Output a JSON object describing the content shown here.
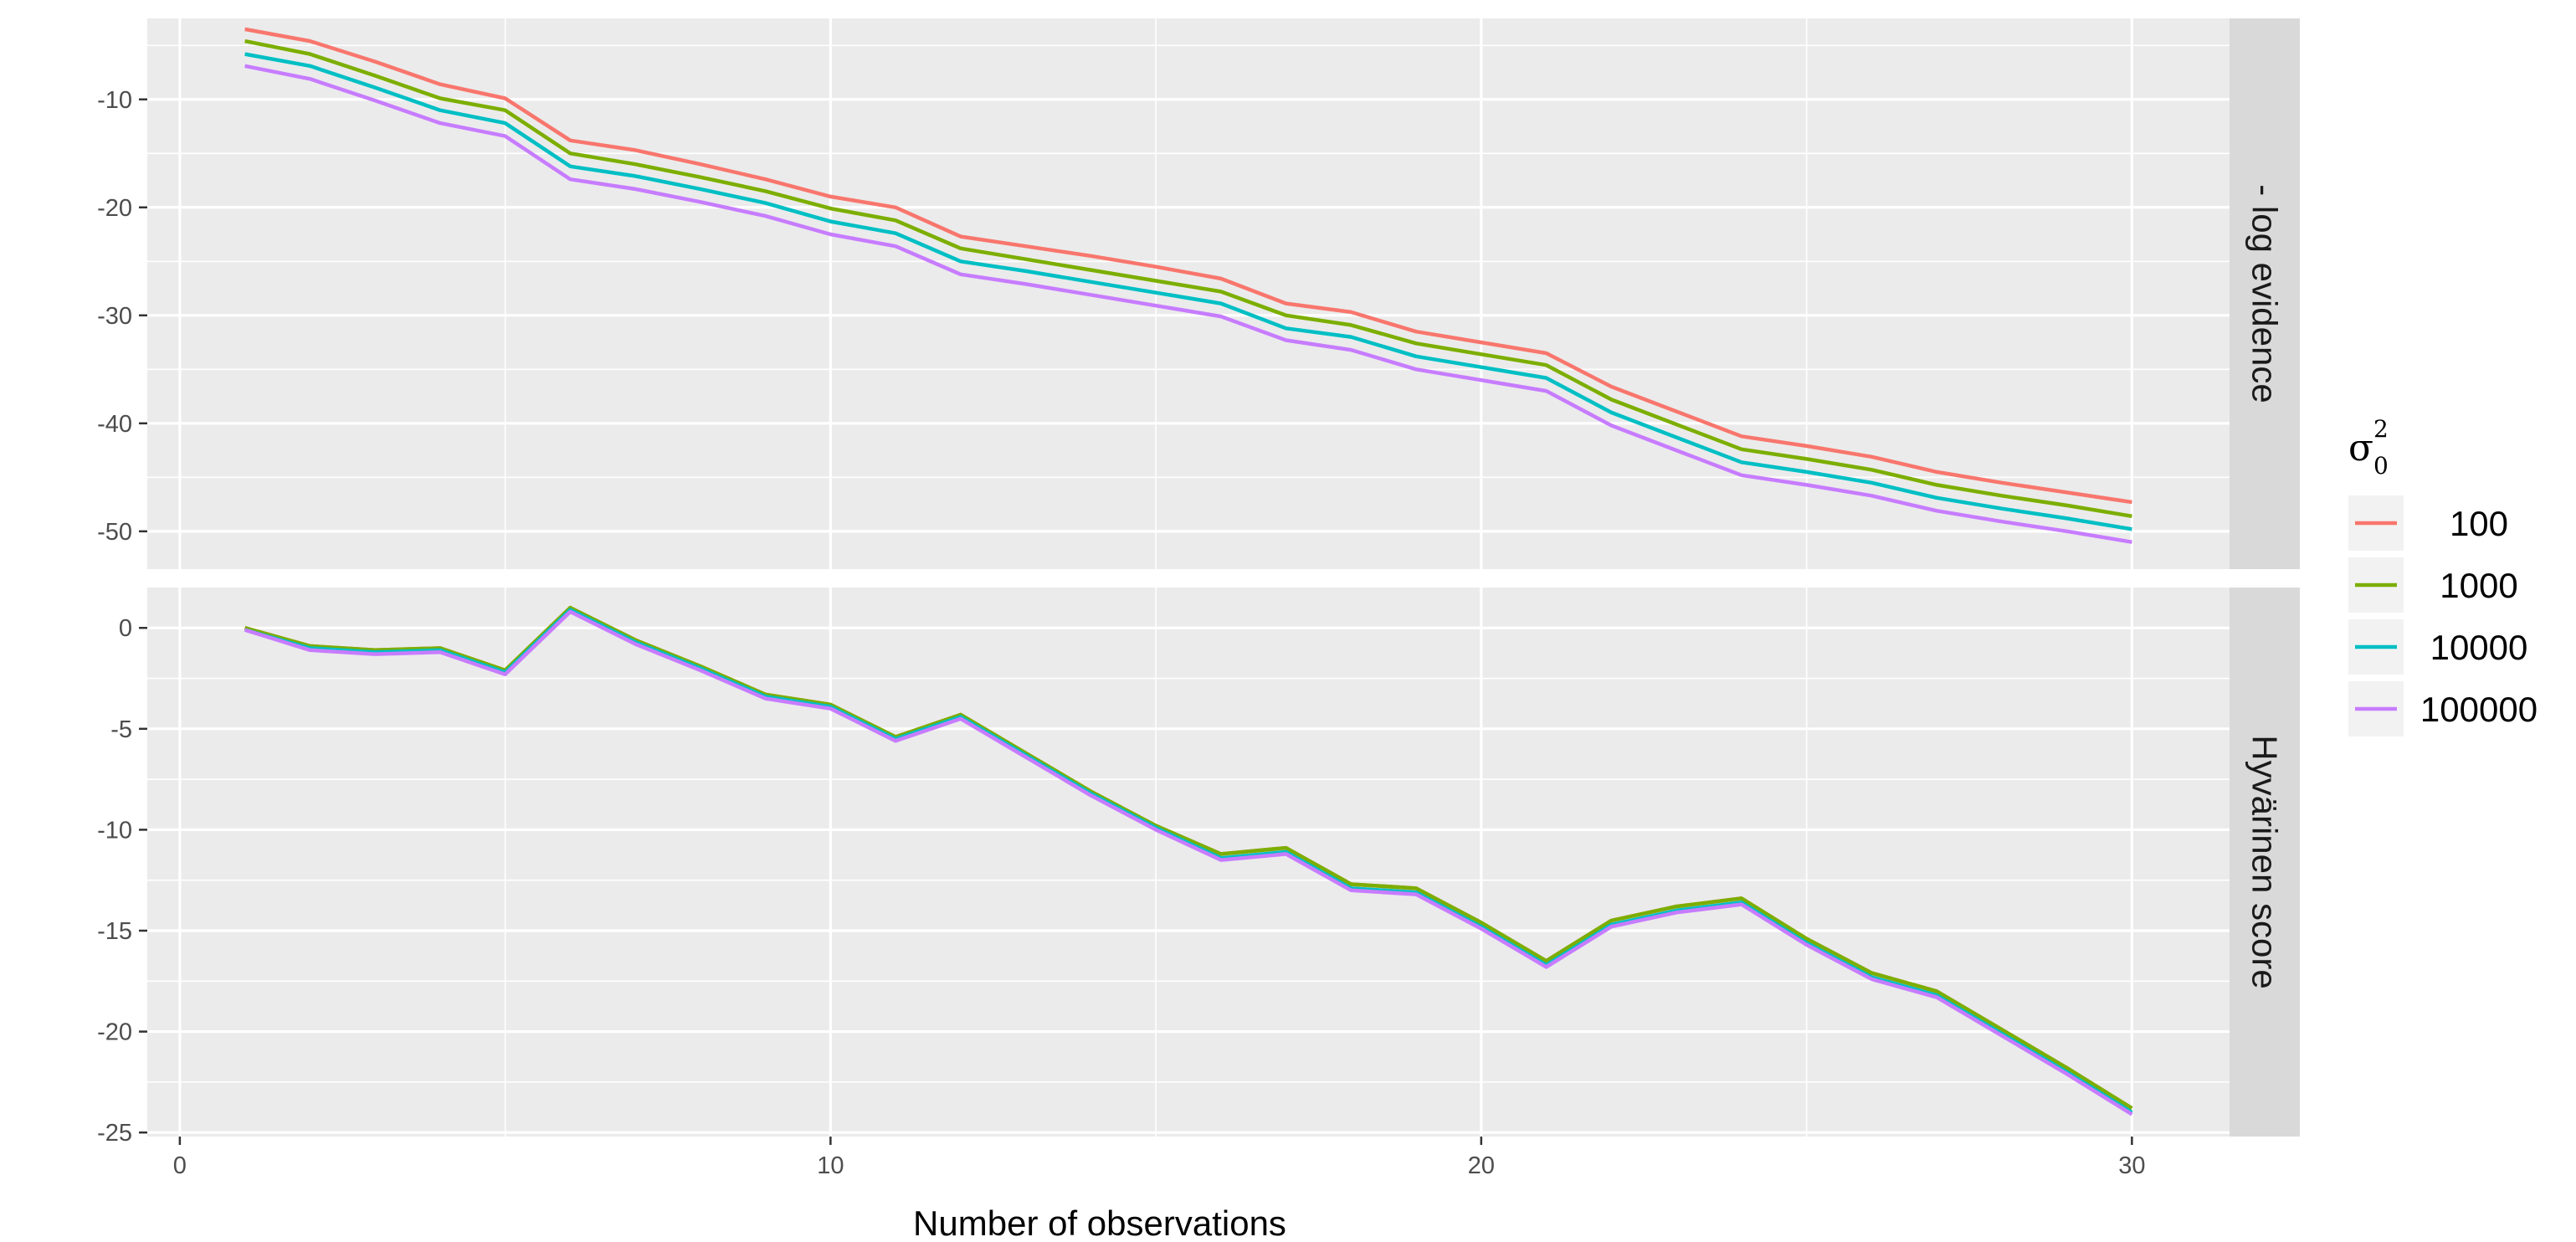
{
  "chart_data": {
    "type": "line",
    "xlabel": "Number of observations",
    "xticks": [
      0,
      10,
      20,
      30
    ],
    "xlim": [
      -0.5,
      31.5
    ],
    "legend": {
      "title": "σ",
      "title_sup": "2",
      "title_sub": "0",
      "placement": "right",
      "entries": [
        "100",
        "1000",
        "10000",
        "100000"
      ]
    },
    "colors": {
      "100": "#F8766D",
      "1000": "#7CAE00",
      "10000": "#00BFC4",
      "100000": "#C77CFF",
      "panel_bg": "#EBEBEB",
      "strip_bg": "#D9D9D9",
      "grid": "#FFFFFF"
    },
    "x": [
      1,
      2,
      3,
      4,
      5,
      6,
      7,
      8,
      9,
      10,
      11,
      12,
      13,
      14,
      15,
      16,
      17,
      18,
      19,
      20,
      21,
      22,
      23,
      24,
      25,
      26,
      27,
      28,
      29,
      30
    ],
    "panels": [
      {
        "strip": "- log evidence",
        "ylim": [
          -53.5,
          -2.5
        ],
        "yticks": [
          -10,
          -20,
          -30,
          -40,
          -50
        ],
        "ytick_labels": [
          "-10",
          "-20",
          "-30",
          "-40",
          "-50"
        ],
        "grid_on": true,
        "series": [
          {
            "name": "100",
            "values": [
              -3.5,
              -4.6,
              -6.5,
              -8.6,
              -9.9,
              -13.8,
              -14.7,
              -16.0,
              -17.4,
              -19.0,
              -20.0,
              -22.7,
              -23.6,
              -24.5,
              -25.5,
              -26.6,
              -28.9,
              -29.7,
              -31.5,
              -32.5,
              -33.5,
              -36.6,
              -38.9,
              -41.2,
              -42.1,
              -43.1,
              -44.5,
              -45.5,
              -46.4,
              -47.3
            ]
          },
          {
            "name": "1000",
            "values": [
              -4.6,
              -5.8,
              -7.8,
              -9.9,
              -11.0,
              -15.0,
              -16.0,
              -17.2,
              -18.5,
              -20.1,
              -21.2,
              -23.8,
              -24.8,
              -25.8,
              -26.8,
              -27.8,
              -30.0,
              -30.9,
              -32.6,
              -33.6,
              -34.6,
              -37.8,
              -40.1,
              -42.4,
              -43.3,
              -44.3,
              -45.7,
              -46.7,
              -47.6,
              -48.6
            ]
          },
          {
            "name": "10000",
            "values": [
              -5.8,
              -6.9,
              -8.9,
              -11.0,
              -12.2,
              -16.2,
              -17.1,
              -18.3,
              -19.6,
              -21.3,
              -22.4,
              -25.0,
              -25.9,
              -26.9,
              -27.9,
              -28.9,
              -31.2,
              -32.0,
              -33.8,
              -34.8,
              -35.8,
              -39.0,
              -41.3,
              -43.6,
              -44.5,
              -45.5,
              -46.9,
              -47.9,
              -48.8,
              -49.8
            ]
          },
          {
            "name": "100000",
            "values": [
              -6.9,
              -8.1,
              -10.1,
              -12.2,
              -13.4,
              -17.4,
              -18.3,
              -19.5,
              -20.8,
              -22.5,
              -23.6,
              -26.2,
              -27.1,
              -28.1,
              -29.1,
              -30.1,
              -32.3,
              -33.2,
              -35.0,
              -36.0,
              -37.0,
              -40.2,
              -42.5,
              -44.8,
              -45.7,
              -46.7,
              -48.1,
              -49.1,
              -50.0,
              -51.0
            ]
          }
        ]
      },
      {
        "strip": "Hyvärinen score",
        "ylim": [
          -25.2,
          2.0
        ],
        "yticks": [
          0,
          -5,
          -10,
          -15,
          -20,
          -25
        ],
        "ytick_labels": [
          "0",
          "-5",
          "-10",
          "-15",
          "-20",
          "-25"
        ],
        "grid_on": true,
        "series": [
          {
            "name": "100",
            "values": [
              0.0,
              -0.9,
              -1.1,
              -1.0,
              -2.1,
              1.0,
              -0.6,
              -1.9,
              -3.3,
              -3.8,
              -5.4,
              -4.3,
              -6.2,
              -8.1,
              -9.8,
              -11.2,
              -10.9,
              -12.7,
              -12.9,
              -14.6,
              -16.5,
              -14.5,
              -13.8,
              -13.4,
              -15.4,
              -17.1,
              -18.0,
              -19.9,
              -21.8,
              -23.8
            ]
          },
          {
            "name": "1000",
            "values": [
              0.0,
              -0.9,
              -1.1,
              -1.0,
              -2.1,
              1.0,
              -0.6,
              -1.9,
              -3.3,
              -3.8,
              -5.4,
              -4.3,
              -6.2,
              -8.1,
              -9.8,
              -11.2,
              -10.9,
              -12.7,
              -12.9,
              -14.6,
              -16.5,
              -14.5,
              -13.8,
              -13.4,
              -15.4,
              -17.1,
              -18.0,
              -19.9,
              -21.8,
              -23.8
            ]
          },
          {
            "name": "10000",
            "values": [
              -0.1,
              -1.0,
              -1.2,
              -1.1,
              -2.2,
              0.9,
              -0.7,
              -2.0,
              -3.4,
              -3.9,
              -5.5,
              -4.4,
              -6.3,
              -8.2,
              -9.9,
              -11.4,
              -11.1,
              -12.9,
              -13.1,
              -14.8,
              -16.7,
              -14.7,
              -14.0,
              -13.6,
              -15.6,
              -17.3,
              -18.2,
              -20.1,
              -22.0,
              -24.0
            ]
          },
          {
            "name": "100000",
            "values": [
              -0.1,
              -1.1,
              -1.3,
              -1.2,
              -2.3,
              0.8,
              -0.8,
              -2.1,
              -3.5,
              -4.0,
              -5.6,
              -4.5,
              -6.4,
              -8.3,
              -10.0,
              -11.5,
              -11.2,
              -13.0,
              -13.2,
              -14.9,
              -16.8,
              -14.8,
              -14.1,
              -13.7,
              -15.7,
              -17.4,
              -18.3,
              -20.2,
              -22.1,
              -24.1
            ]
          }
        ]
      }
    ]
  }
}
